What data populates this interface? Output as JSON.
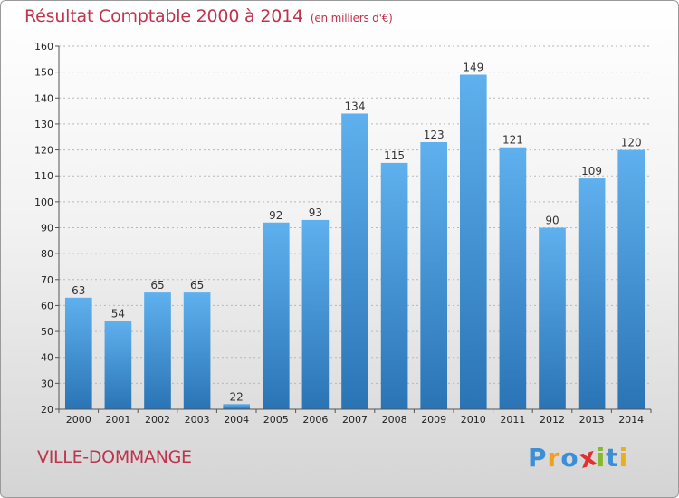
{
  "chart_data": {
    "type": "bar",
    "title": "Résultat Comptable 2000 à 2014",
    "subtitle": "(en milliers d'€)",
    "categories": [
      "2000",
      "2001",
      "2002",
      "2003",
      "2004",
      "2005",
      "2006",
      "2007",
      "2008",
      "2009",
      "2010",
      "2011",
      "2012",
      "2013",
      "2014"
    ],
    "values": [
      63,
      54,
      65,
      65,
      22,
      92,
      93,
      134,
      115,
      123,
      149,
      121,
      90,
      109,
      120
    ],
    "ylim": [
      20,
      160
    ],
    "yticks": [
      20,
      30,
      40,
      50,
      60,
      70,
      80,
      90,
      100,
      110,
      120,
      130,
      140,
      150,
      160
    ],
    "xlabel": "",
    "ylabel": "",
    "grid": true
  },
  "footer": {
    "commune": "VILLE-DOMMANGE",
    "logo_letters": [
      "P",
      "r",
      "o",
      "x",
      "i",
      "t",
      "i"
    ],
    "logo_colors": [
      "#3c8fd6",
      "#f0a020",
      "#3c8fd6",
      "#e03030",
      "#88b830",
      "#3c8fd6",
      "#e8b020"
    ]
  },
  "colors": {
    "bar_top": "#5fb0ee",
    "bar_bottom": "#2a74b5",
    "title": "#c0334d"
  }
}
